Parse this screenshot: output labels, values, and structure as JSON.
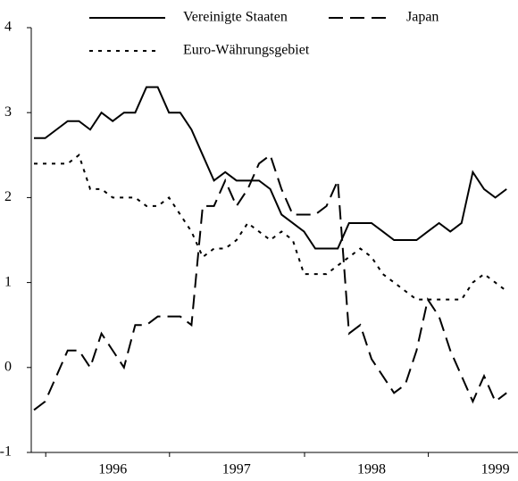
{
  "chart_data": {
    "type": "line",
    "categories": [
      null,
      null,
      null,
      null,
      null,
      null,
      null,
      "1996",
      null,
      null,
      null,
      null,
      null,
      null,
      null,
      null,
      null,
      null,
      "1997",
      null,
      null,
      null,
      null,
      null,
      null,
      null,
      null,
      null,
      null,
      null,
      "1998",
      null,
      null,
      null,
      null,
      null,
      null,
      null,
      null,
      null,
      null,
      "1999",
      null
    ],
    "series": [
      {
        "name": "Vereinigte Staaten",
        "color": "#000000",
        "dash": "solid",
        "values": [
          2.7,
          2.7,
          2.8,
          2.9,
          2.9,
          2.8,
          3.0,
          2.9,
          3.0,
          3.0,
          3.3,
          3.3,
          3.0,
          3.0,
          2.8,
          2.5,
          2.2,
          2.3,
          2.2,
          2.2,
          2.2,
          2.1,
          1.8,
          1.7,
          1.6,
          1.4,
          1.4,
          1.4,
          1.7,
          1.7,
          1.7,
          1.6,
          1.5,
          1.5,
          1.5,
          1.6,
          1.7,
          1.6,
          1.7,
          2.3,
          2.1,
          2.0,
          2.1
        ]
      },
      {
        "name": "Japan",
        "color": "#000000",
        "dash": "dashed",
        "values": [
          -0.5,
          -0.4,
          -0.1,
          0.2,
          0.2,
          0.0,
          0.4,
          0.2,
          0.0,
          0.5,
          0.5,
          0.6,
          0.6,
          0.6,
          0.5,
          1.9,
          1.9,
          2.2,
          1.9,
          2.1,
          2.4,
          2.5,
          2.1,
          1.8,
          1.8,
          1.8,
          1.9,
          2.2,
          0.4,
          0.5,
          0.1,
          -0.1,
          -0.3,
          -0.2,
          0.2,
          0.8,
          0.6,
          0.2,
          -0.1,
          -0.4,
          -0.1,
          -0.4,
          -0.3
        ]
      },
      {
        "name": "Euro-Währungsgebiet",
        "color": "#000000",
        "dash": "dotted",
        "values": [
          2.4,
          2.4,
          2.4,
          2.4,
          2.5,
          2.1,
          2.1,
          2.0,
          2.0,
          2.0,
          1.9,
          1.9,
          2.0,
          1.8,
          1.6,
          1.3,
          1.4,
          1.4,
          1.5,
          1.7,
          1.6,
          1.5,
          1.6,
          1.5,
          1.1,
          1.1,
          1.1,
          1.2,
          1.3,
          1.4,
          1.3,
          1.1,
          1.0,
          0.9,
          0.8,
          0.8,
          0.8,
          0.8,
          0.8,
          1.0,
          1.1,
          1.0,
          0.9
        ]
      }
    ],
    "ylim": [
      -1,
      4
    ],
    "yticks": [
      -1,
      0,
      1,
      2,
      3,
      4
    ],
    "grid": false
  }
}
